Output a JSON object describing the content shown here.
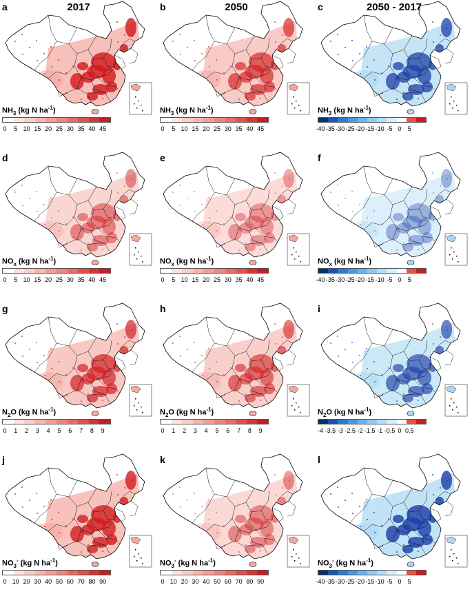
{
  "colors": {
    "seq": [
      "#ffffff",
      "#fde3e0",
      "#fbcdc8",
      "#f7b5ae",
      "#f39d95",
      "#ee857d",
      "#e86b65",
      "#e0514e",
      "#d63536",
      "#c81e22"
    ],
    "div": [
      "#08306b",
      "#1853b5",
      "#2f79d4",
      "#4b97e0",
      "#6cb2ec",
      "#8ecaf3",
      "#b2dcf6",
      "#d7eefa",
      "#ffffff",
      "#e8523f",
      "#c81e22"
    ],
    "wash": {
      "seq": "#f4a8a0",
      "div": "#a9d8f2"
    },
    "hotspot": {
      "seq": "#d11a1e",
      "div": "#1c3fa8"
    }
  },
  "columns": [
    "2017",
    "2050",
    "2050 - 2017"
  ],
  "rows": [
    {
      "species": {
        "base": "NH",
        "sub": "3",
        "sup": ""
      },
      "unit": " (kg N ha",
      "unit_exp": "-1",
      "seq_ticks": [
        "0",
        "5",
        "10",
        "15",
        "20",
        "25",
        "30",
        "35",
        "40",
        "45"
      ],
      "div_ticks": [
        "-40",
        "-35",
        "-30",
        "-25",
        "-20",
        "-15",
        "-10",
        "-5",
        "0",
        "5"
      ],
      "panels": [
        {
          "letter": "a",
          "intensity": 0.95,
          "mode": "seq"
        },
        {
          "letter": "b",
          "intensity": 0.7,
          "mode": "seq"
        },
        {
          "letter": "c",
          "intensity": 0.85,
          "mode": "div"
        }
      ]
    },
    {
      "species": {
        "base": "NO",
        "sub": "x",
        "sup": ""
      },
      "unit": " (kg N ha",
      "unit_exp": "-1",
      "seq_ticks": [
        "0",
        "5",
        "10",
        "15",
        "20",
        "25",
        "30",
        "35",
        "40",
        "45"
      ],
      "div_ticks": [
        "-40",
        "-35",
        "-30",
        "-25",
        "-20",
        "-15",
        "-10",
        "-5",
        "0",
        "5"
      ],
      "panels": [
        {
          "letter": "d",
          "intensity": 0.45,
          "mode": "seq"
        },
        {
          "letter": "e",
          "intensity": 0.3,
          "mode": "seq"
        },
        {
          "letter": "f",
          "intensity": 0.3,
          "mode": "div"
        }
      ]
    },
    {
      "species": {
        "base": "N",
        "sub": "2",
        "sup": "",
        "tail": "O"
      },
      "unit": " (kg N ha",
      "unit_exp": "-1",
      "seq_ticks": [
        "0",
        "1",
        "2",
        "3",
        "4",
        "5",
        "6",
        "7",
        "8",
        "9"
      ],
      "div_ticks": [
        "-4",
        "-3.5",
        "-3",
        "-2.5",
        "-2",
        "-1.5",
        "-1",
        "-0.5",
        "0",
        "0.5"
      ],
      "panels": [
        {
          "letter": "g",
          "intensity": 0.75,
          "mode": "seq"
        },
        {
          "letter": "h",
          "intensity": 0.6,
          "mode": "seq"
        },
        {
          "letter": "i",
          "intensity": 0.7,
          "mode": "div"
        }
      ]
    },
    {
      "species": {
        "base": "NO",
        "sub": "3",
        "sup": "-"
      },
      "unit": " (kg N ha",
      "unit_exp": "-1",
      "seq_ticks": [
        "0",
        "10",
        "20",
        "30",
        "40",
        "50",
        "60",
        "70",
        "80",
        "90"
      ],
      "div_ticks": [
        "-40",
        "-35",
        "-30",
        "-25",
        "-20",
        "-15",
        "-10",
        "-5",
        "0",
        "5"
      ],
      "panels": [
        {
          "letter": "j",
          "intensity": 0.9,
          "mode": "seq"
        },
        {
          "letter": "k",
          "intensity": 0.4,
          "mode": "seq"
        },
        {
          "letter": "l",
          "intensity": 0.95,
          "mode": "div"
        }
      ]
    }
  ]
}
